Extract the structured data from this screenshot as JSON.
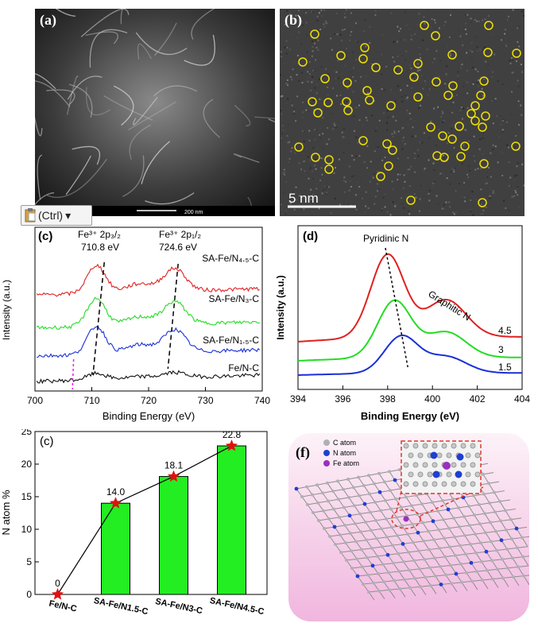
{
  "panel_a": {
    "label": "(a)",
    "scalebar_text": "200 nm"
  },
  "panel_b": {
    "label": "(b)",
    "scalebar_text": "5  nm",
    "marker_color": "#f0e000"
  },
  "paste_button": {
    "label": "(Ctrl)",
    "icon": "clipboard-icon",
    "caret": "▾"
  },
  "chart_data": [
    {
      "panel": "(c)",
      "type": "line",
      "xlabel": "Binding Energy (eV)",
      "ylabel": "Intensity (a.u.)",
      "xlim": [
        700,
        740
      ],
      "xticks": [
        700,
        710,
        720,
        730,
        740
      ],
      "annotations": [
        {
          "line1": "Fe³⁺ 2p₃/₂",
          "line2": "710.8 eV"
        },
        {
          "line1": "Fe³⁺ 2p₁/₂",
          "line2": "724.6 eV"
        }
      ],
      "series": [
        {
          "name": "SA-Fe/N4.5-C",
          "display": "SA-Fe/N₄.₅-C",
          "color": "#e02020",
          "baseline": 0.68
        },
        {
          "name": "SA-Fe/N3-C",
          "display": "SA-Fe/N₃-C",
          "color": "#22dd22",
          "baseline": 0.42
        },
        {
          "name": "SA-Fe/N1.5-C",
          "display": "SA-Fe/N₁.₅-C",
          "color": "#1a2fd8",
          "baseline": 0.2
        },
        {
          "name": "Fe/N-C",
          "display": "Fe/N-C",
          "color": "#111111",
          "baseline": 0.0
        }
      ]
    },
    {
      "panel": "(d)",
      "type": "line",
      "xlabel": "Binding Energy (eV)",
      "ylabel": "Intensity (a.u.)",
      "xlim": [
        394,
        404
      ],
      "xticks": [
        394,
        396,
        398,
        400,
        402,
        404
      ],
      "annotations": [
        {
          "text": "Pyridinic N"
        },
        {
          "text": "Graphitic N"
        }
      ],
      "series": [
        {
          "name": "4.5",
          "color": "#e02020",
          "peak_x": 398.0
        },
        {
          "name": "3",
          "color": "#22dd22",
          "peak_x": 398.3
        },
        {
          "name": "1.5",
          "color": "#1a2fd8",
          "peak_x": 398.6
        }
      ]
    },
    {
      "panel": "(c)",
      "type": "bar",
      "ylabel": "N atom %",
      "ylim": [
        0,
        25
      ],
      "yticks": [
        0,
        5,
        10,
        15,
        20,
        25
      ],
      "categories": [
        "Fe/N-C",
        "SA-Fe/N1.5-C",
        "SA-Fe/N3-C",
        "SA-Fe/N4.5-C"
      ],
      "values": [
        0,
        14.0,
        18.1,
        22.8
      ],
      "value_labels": [
        "0",
        "14.0",
        "18.1",
        "22.8"
      ],
      "bar_color": "#22ee22",
      "marker_color": "#e01010"
    }
  ],
  "panel_f": {
    "label": "(f)",
    "legend": [
      {
        "label": "C atom",
        "color": "#b0b0b0"
      },
      {
        "label": "N atom",
        "color": "#1f3fd0"
      },
      {
        "label": "Fe atom",
        "color": "#9a2fc0"
      }
    ]
  }
}
